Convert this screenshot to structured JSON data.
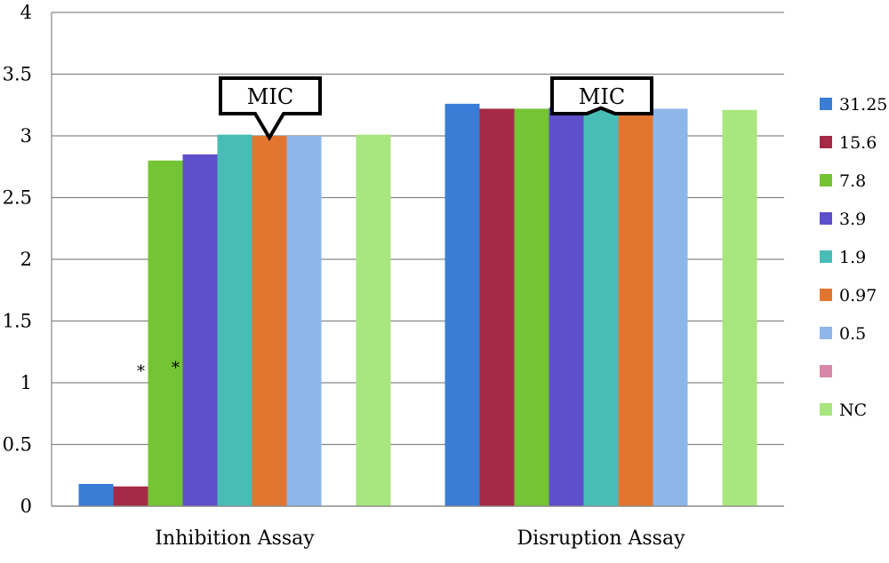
{
  "chart_data": {
    "type": "bar",
    "categories": [
      "Inhibition Assay",
      "Disruption Assay"
    ],
    "series": [
      {
        "name": "31.25",
        "color": "#3a7dd6",
        "values": [
          0.18,
          3.26
        ]
      },
      {
        "name": "15.6",
        "color": "#a52a45",
        "values": [
          0.16,
          3.22
        ]
      },
      {
        "name": "7.8",
        "color": "#74c434",
        "values": [
          2.8,
          3.22
        ]
      },
      {
        "name": "3.9",
        "color": "#5e4fcb",
        "values": [
          2.85,
          3.23
        ]
      },
      {
        "name": "1.9",
        "color": "#48bdb6",
        "values": [
          3.01,
          3.24
        ]
      },
      {
        "name": "0.97",
        "color": "#e27630",
        "values": [
          3.0,
          3.26
        ]
      },
      {
        "name": "0.5",
        "color": "#8db6ea",
        "values": [
          3.0,
          3.22
        ]
      },
      {
        "name": "",
        "color": "#d987a9",
        "values": [
          null,
          null
        ]
      },
      {
        "name": "NC",
        "color": "#a9e67f",
        "values": [
          3.01,
          3.21
        ]
      }
    ],
    "yticks": [
      "0",
      "0.5",
      "1",
      "1.5",
      "2",
      "2.5",
      "3",
      "3.5",
      "4"
    ],
    "ylim": [
      0,
      4
    ],
    "grid": true,
    "legend_position": "right",
    "annotations": {
      "mic_label": "MIC",
      "mic_markers": [
        {
          "category": 0,
          "series": 5
        },
        {
          "category": 1,
          "series": 4
        }
      ],
      "asterisk": "*",
      "asterisk_marks": [
        {
          "category": 0,
          "series": 1
        },
        {
          "category": 0,
          "series": 2
        }
      ],
      "asterisk_value": 1.15
    }
  }
}
